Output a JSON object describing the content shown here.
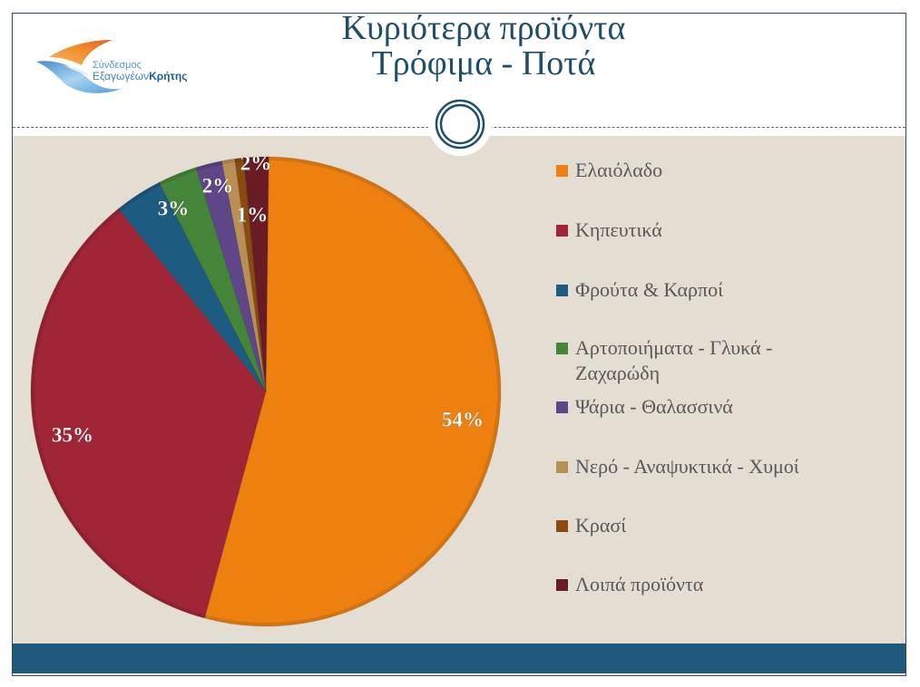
{
  "logo": {
    "line1": "Σύνδεσμος",
    "line2_regular": "Εξαγωγέων",
    "line2_bold": "Κρήτης"
  },
  "theme": {
    "title_color": "#1f4e6b",
    "content_background": "#e3ddd2",
    "footer_color": "#1f597b",
    "legend_text_color": "#595959"
  },
  "chart_data": {
    "type": "pie",
    "title_lines": [
      "Κυριότερα προϊόντα",
      "Τρόφιμα - Ποτά"
    ],
    "labels": [
      "Ελαιόλαδο",
      "Κηπευτικά",
      "Φρούτα & Καρποί",
      "Αρτοποιήματα - Γλυκά - Ζαχαρώδη",
      "Ψάρια - Θαλασσινά",
      "Νερό - Αναψυκτικά - Χυμοί",
      "Κρασί",
      "Λοιπά προϊόντα"
    ],
    "values": [
      54,
      35,
      3.3,
      2.7,
      1.8,
      0.9,
      0.6,
      1.7
    ],
    "unit": "%",
    "colors": [
      "#ee8010",
      "#a02637",
      "#1e5b80",
      "#45853a",
      "#5e4688",
      "#b88f55",
      "#8a4a10",
      "#6a1c25"
    ],
    "data_labels": [
      {
        "slice": 0,
        "text": "54%"
      },
      {
        "slice": 1,
        "text": "35%"
      },
      {
        "slice": 2,
        "text": "3%"
      },
      {
        "slice": 4,
        "text": "2%"
      },
      {
        "slice": 6,
        "text": "1%"
      },
      {
        "slice": 7,
        "text": "2%"
      }
    ],
    "legend_position": "right",
    "direction": "clockwise"
  }
}
